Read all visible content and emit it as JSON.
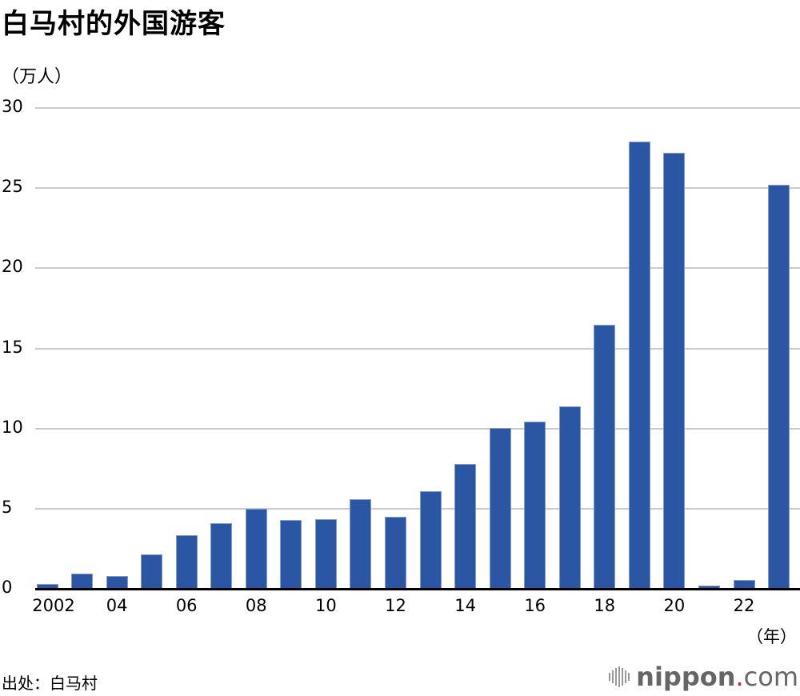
{
  "title": "白马村的外国游客",
  "unit_label": "（万人）",
  "x_unit_label": "（年）",
  "source": "出处：白马村",
  "logo": {
    "main": "nippon",
    "dot": ".",
    "suffix": "com"
  },
  "colors": {
    "bar": "#2b56a3",
    "grid": "#cccccc",
    "axis": "#000000",
    "logo_dot": "#e02020"
  },
  "y_ticks": [
    "30",
    "25",
    "20",
    "15",
    "10",
    "5",
    "0"
  ],
  "x_ticks": [
    "2002",
    "04",
    "06",
    "08",
    "10",
    "12",
    "14",
    "16",
    "18",
    "20",
    "22"
  ],
  "chart_data": {
    "type": "bar",
    "title": "白马村的外国游客",
    "xlabel": "（年）",
    "ylabel": "（万人）",
    "ylim": [
      0,
      30
    ],
    "yticks": [
      0,
      5,
      10,
      15,
      20,
      25,
      30
    ],
    "grid": true,
    "legend": null,
    "categories": [
      "2002",
      "2003",
      "2004",
      "2005",
      "2006",
      "2007",
      "2008",
      "2009",
      "2010",
      "2011",
      "2012",
      "2013",
      "2014",
      "2015",
      "2016",
      "2017",
      "2018",
      "2019",
      "2020",
      "2021",
      "2022",
      "2023"
    ],
    "x_tick_labels": [
      "2002",
      "04",
      "06",
      "08",
      "10",
      "12",
      "14",
      "16",
      "18",
      "20",
      "22"
    ],
    "values": [
      0.3,
      0.95,
      0.8,
      2.15,
      3.35,
      4.1,
      5.0,
      4.3,
      4.35,
      5.6,
      4.5,
      6.1,
      7.8,
      10.05,
      10.45,
      11.4,
      16.45,
      27.9,
      27.2,
      0.2,
      0.55,
      25.2
    ],
    "source": "出处：白马村"
  }
}
